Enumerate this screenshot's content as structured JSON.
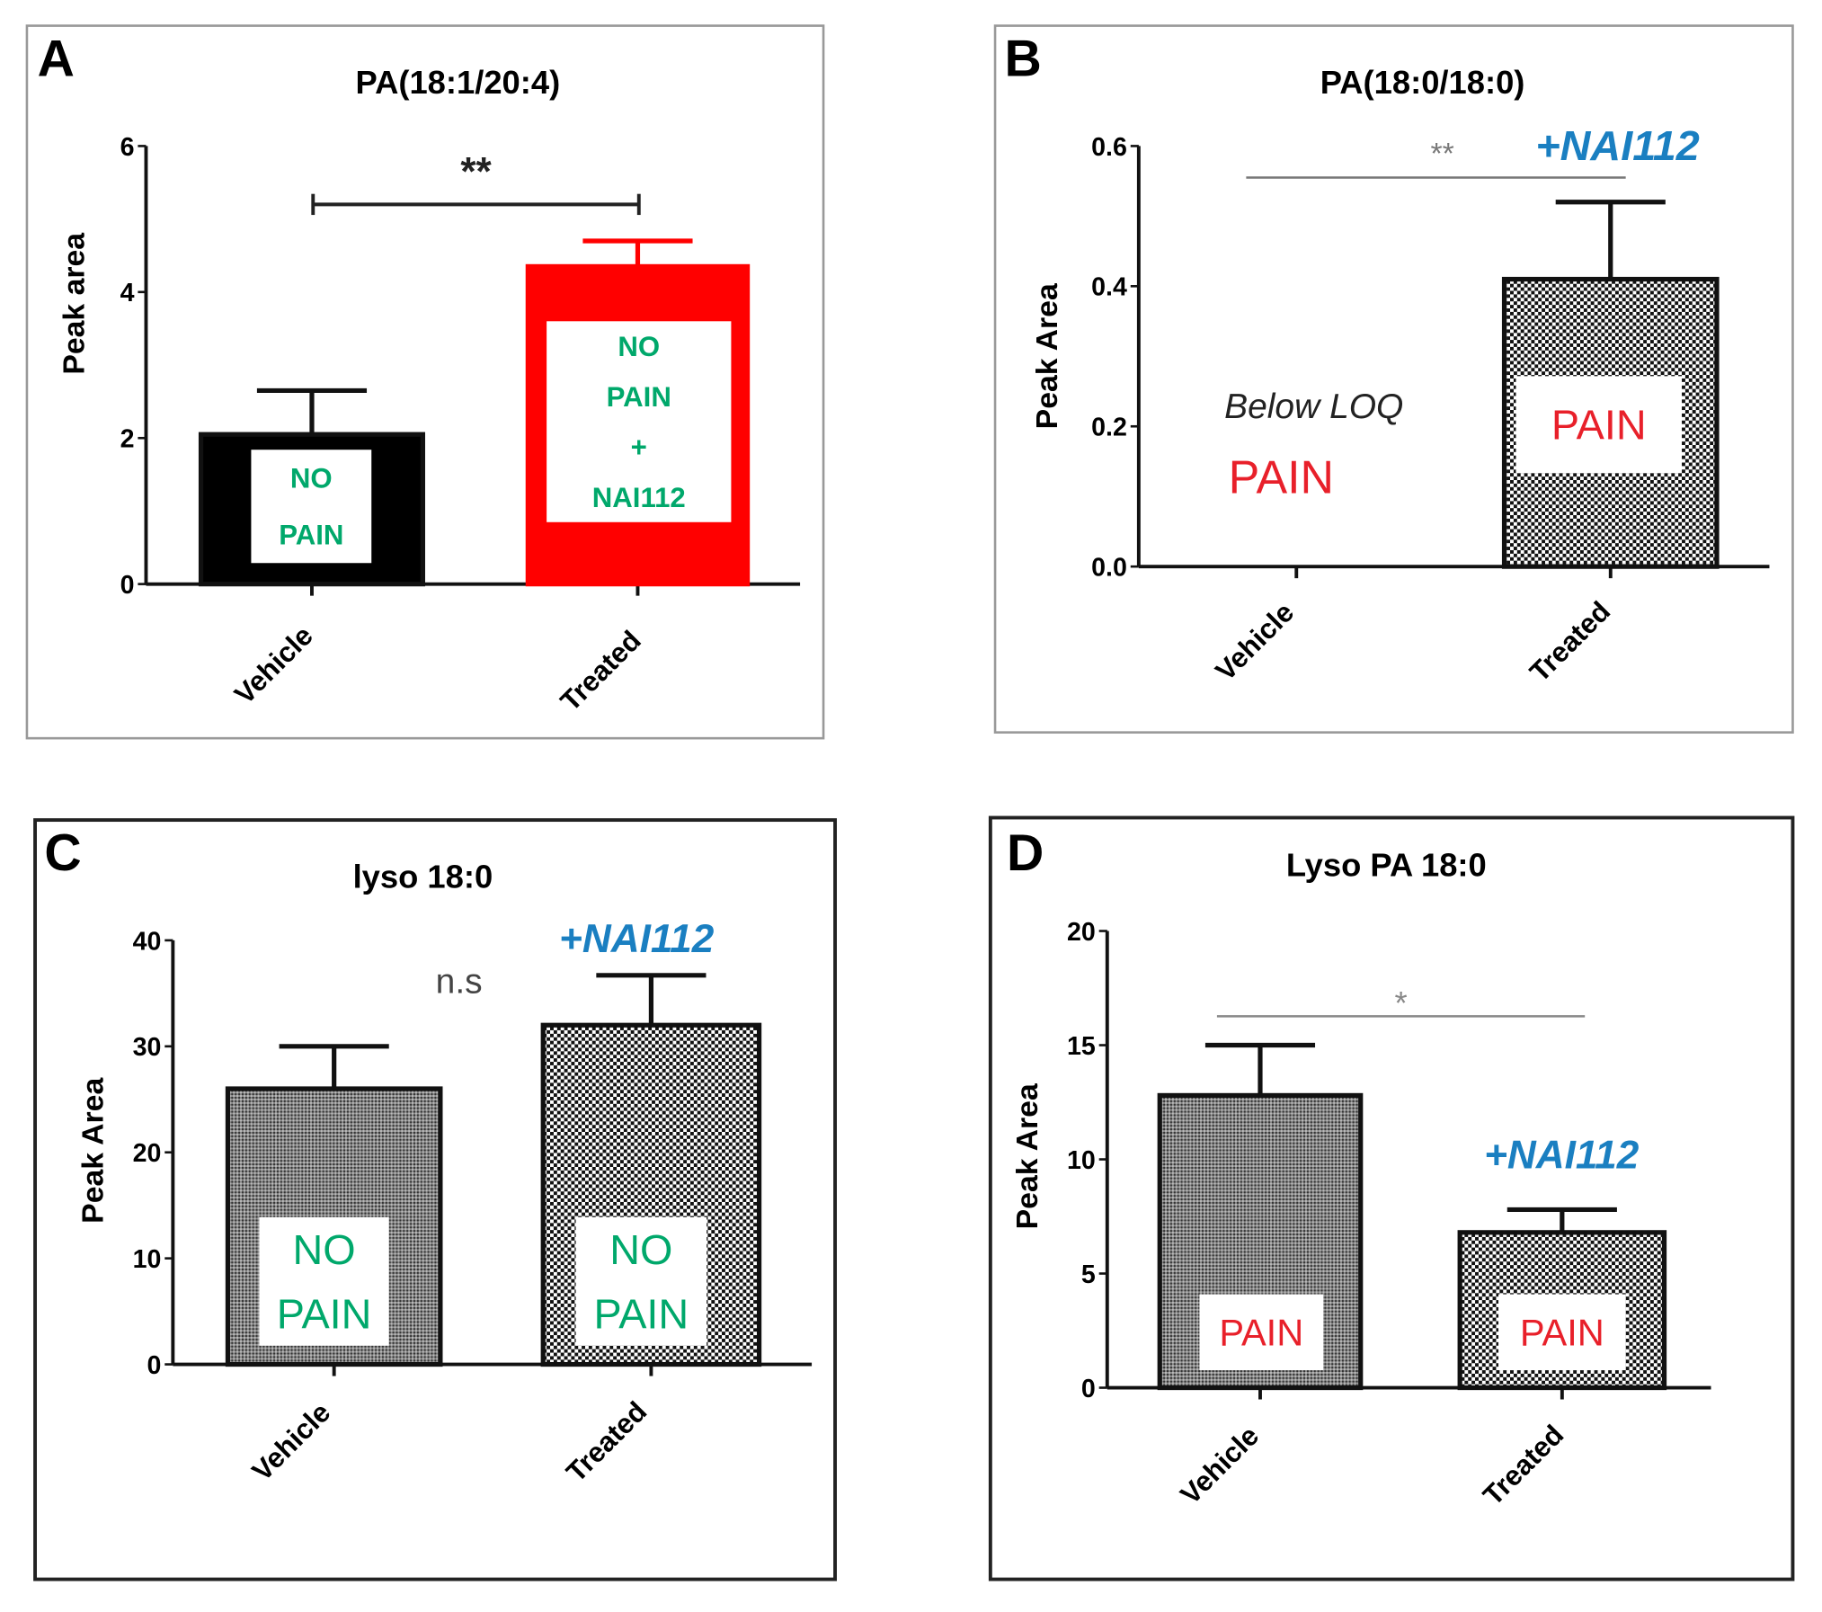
{
  "chart_data": [
    {
      "panel": "A",
      "type": "bar",
      "title": "PA(18:1/20:4)",
      "ylabel": "Peak area",
      "ylim": [
        0,
        6
      ],
      "yticks": [
        "0",
        "2",
        "4",
        "6"
      ],
      "categories": [
        "Vehicle",
        "Treated"
      ],
      "values": [
        2.05,
        4.35
      ],
      "errors": [
        2.65,
        4.7
      ],
      "bar_styles": [
        "solid-black",
        "solid-red"
      ],
      "bar_labels": [
        [
          "NO",
          "PAIN"
        ],
        [
          "NO",
          "PAIN",
          "+",
          "NAI112"
        ]
      ],
      "bar_label_color": "#00a86b",
      "significance": "**",
      "annotations": []
    },
    {
      "panel": "B",
      "type": "bar",
      "title": "PA(18:0/18:0)",
      "ylabel": "Peak Area",
      "ylim": [
        0,
        0.6
      ],
      "yticks": [
        "0.0",
        "0.2",
        "0.4",
        "0.6"
      ],
      "categories": [
        "Vehicle",
        "Treated"
      ],
      "values": [
        null,
        0.41
      ],
      "errors": [
        null,
        0.52
      ],
      "bar_styles": [
        "none",
        "checker"
      ],
      "bar_labels": [
        [],
        [
          "PAIN"
        ]
      ],
      "bar_label_color": "#e8202a",
      "significance": "**",
      "annotations": [
        "+NAI112",
        "Below LOQ",
        "PAIN"
      ]
    },
    {
      "panel": "C",
      "type": "bar",
      "title": "lyso 18:0",
      "ylabel": "Peak Area",
      "ylim": [
        0,
        40
      ],
      "yticks": [
        "0",
        "10",
        "20",
        "30",
        "40"
      ],
      "categories": [
        "Vehicle",
        "Treated"
      ],
      "values": [
        26,
        32
      ],
      "errors": [
        30,
        36.7
      ],
      "bar_styles": [
        "fine-gray",
        "checker"
      ],
      "bar_labels": [
        [
          "NO",
          "PAIN"
        ],
        [
          "NO",
          "PAIN"
        ]
      ],
      "bar_label_color": "#00a86b",
      "significance": "n.s",
      "annotations": [
        "+NAI112"
      ]
    },
    {
      "panel": "D",
      "type": "bar",
      "title": "Lyso PA 18:0",
      "ylabel": "Peak Area",
      "ylim": [
        0,
        20
      ],
      "yticks": [
        "0",
        "5",
        "10",
        "15",
        "20"
      ],
      "categories": [
        "Vehicle",
        "Treated"
      ],
      "values": [
        12.8,
        6.8
      ],
      "errors": [
        15,
        7.8
      ],
      "bar_styles": [
        "fine-gray",
        "checker"
      ],
      "bar_labels": [
        [
          "PAIN"
        ],
        [
          "PAIN"
        ]
      ],
      "bar_label_color": "#e8202a",
      "significance": "*",
      "annotations": [
        "+NAI112"
      ]
    }
  ],
  "colors": {
    "nai_blue": "#1a7fc1",
    "pain_red": "#e8202a",
    "nopain_green": "#00a86b",
    "bar_red": "#ff0000"
  }
}
